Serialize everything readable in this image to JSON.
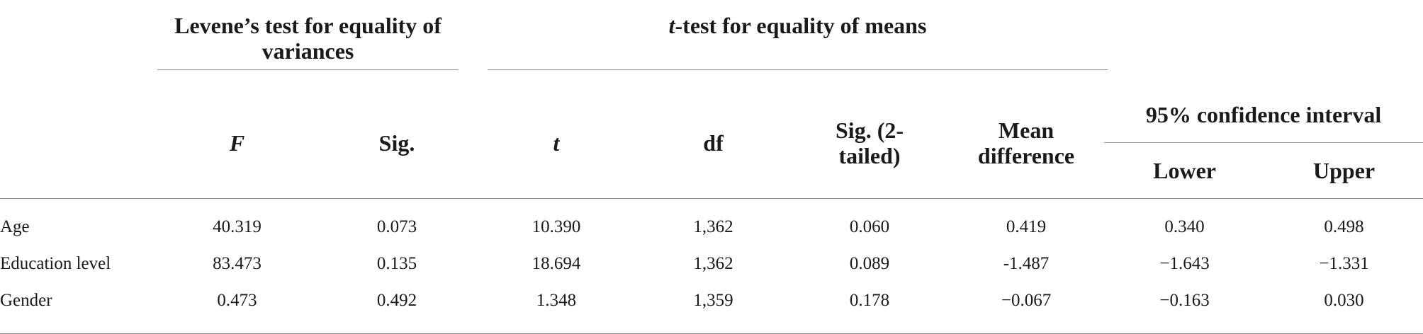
{
  "table": {
    "group_headers": [
      "Levene’s test for equality of variances",
      "t-test for equality of means",
      "95% confidence interval"
    ],
    "columns": [
      "F",
      "Sig.",
      "t",
      "df",
      "Sig. (2-tailed)",
      "Mean difference",
      "Lower",
      "Upper"
    ],
    "rows": [
      [
        "Age",
        "40.319",
        "0.073",
        "10.390",
        "1,362",
        "0.060",
        "0.419",
        "0.340",
        "0.498"
      ],
      [
        "Education level",
        "83.473",
        "0.135",
        "18.694",
        "1,362",
        "0.089",
        "-1.487",
        "−1.643",
        "−1.331"
      ],
      [
        "Gender",
        "0.473",
        "0.492",
        "1.348",
        "1,359",
        "0.178",
        "−0.067",
        "−0.163",
        "0.030"
      ]
    ]
  }
}
